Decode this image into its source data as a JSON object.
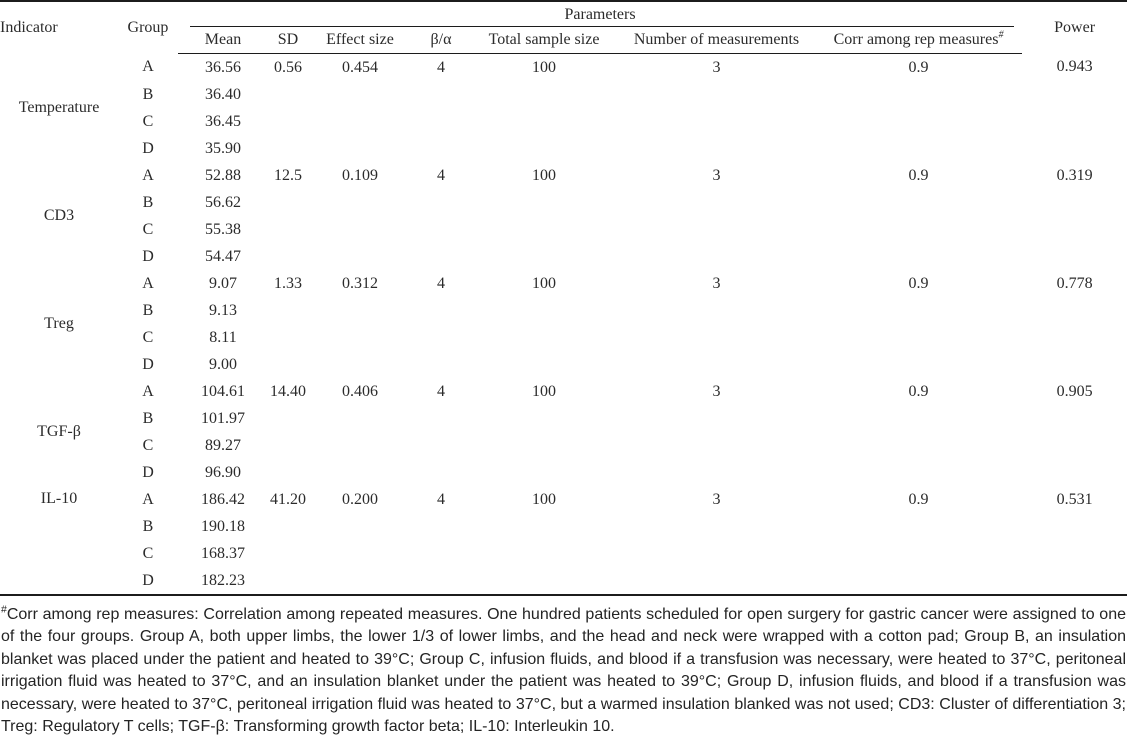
{
  "table": {
    "header": {
      "indicator": "Indicator",
      "group": "Group",
      "parameters": "Parameters",
      "power": "Power",
      "corr_marker": "#"
    },
    "param_columns": [
      "Mean",
      "SD",
      "Effect size",
      "β/α",
      "Total sample size",
      "Number of measurements",
      "Corr among rep measures"
    ],
    "blocks": [
      {
        "indicator": "Temperature",
        "label_align": "middle",
        "rows": [
          {
            "group": "A",
            "mean": "36.56",
            "sd": "0.56",
            "effect_size": "0.454",
            "beta_alpha": "4",
            "total_sample_size": "100",
            "num_measurements": "3",
            "corr_rep_measures": "0.9",
            "power": "0.943"
          },
          {
            "group": "B",
            "mean": "36.40"
          },
          {
            "group": "C",
            "mean": "36.45"
          },
          {
            "group": "D",
            "mean": "35.90"
          }
        ]
      },
      {
        "indicator": "CD3",
        "label_align": "middle",
        "rows": [
          {
            "group": "A",
            "mean": "52.88",
            "sd": "12.5",
            "effect_size": "0.109",
            "beta_alpha": "4",
            "total_sample_size": "100",
            "num_measurements": "3",
            "corr_rep_measures": "0.9",
            "power": "0.319"
          },
          {
            "group": "B",
            "mean": "56.62"
          },
          {
            "group": "C",
            "mean": "55.38"
          },
          {
            "group": "D",
            "mean": "54.47"
          }
        ]
      },
      {
        "indicator": "Treg",
        "label_align": "middle",
        "rows": [
          {
            "group": "A",
            "mean": "9.07",
            "sd": "1.33",
            "effect_size": "0.312",
            "beta_alpha": "4",
            "total_sample_size": "100",
            "num_measurements": "3",
            "corr_rep_measures": "0.9",
            "power": "0.778"
          },
          {
            "group": "B",
            "mean": "9.13"
          },
          {
            "group": "C",
            "mean": "8.11"
          },
          {
            "group": "D",
            "mean": "9.00"
          }
        ]
      },
      {
        "indicator": "TGF-β",
        "label_align": "middle",
        "rows": [
          {
            "group": "A",
            "mean": "104.61",
            "sd": "14.40",
            "effect_size": "0.406",
            "beta_alpha": "4",
            "total_sample_size": "100",
            "num_measurements": "3",
            "corr_rep_measures": "0.9",
            "power": "0.905"
          },
          {
            "group": "B",
            "mean": "101.97"
          },
          {
            "group": "C",
            "mean": "89.27"
          },
          {
            "group": "D",
            "mean": "96.90"
          }
        ]
      },
      {
        "indicator": "IL-10",
        "label_align": "top",
        "rows": [
          {
            "group": "A",
            "mean": "186.42",
            "sd": "41.20",
            "effect_size": "0.200",
            "beta_alpha": "4",
            "total_sample_size": "100",
            "num_measurements": "3",
            "corr_rep_measures": "0.9",
            "power": "0.531"
          },
          {
            "group": "B",
            "mean": "190.18"
          },
          {
            "group": "C",
            "mean": "168.37"
          },
          {
            "group": "D",
            "mean": "182.23"
          }
        ]
      }
    ]
  },
  "footnote": {
    "marker": "#",
    "text": "Corr among rep measures: Correlation among repeated measures. One hundred patients scheduled for open surgery for gastric cancer were assigned to one of the four groups. Group A, both upper limbs, the lower 1/3 of lower limbs, and the head and neck were wrapped with a cotton pad; Group B, an insulation blanket was placed under the patient and heated to 39°C; Group C, infusion fluids, and blood if a transfusion was necessary, were heated to 37°C, peritoneal irrigation fluid was heated to 37°C, and an insulation blanket under the patient was heated to 39°C; Group D, infusion fluids, and blood if a transfusion was necessary, were heated to 37°C, peritoneal irrigation fluid was heated to 37°C, but a warmed insulation blanked was not used; CD3: Cluster of differentiation 3; Treg: Regulatory T cells; TGF-β: Transforming growth factor beta; IL-10: Interleukin 10."
  },
  "colors": {
    "text": "#2b2b2b",
    "rule": "#1c1c1c",
    "background": "#ffffff"
  }
}
